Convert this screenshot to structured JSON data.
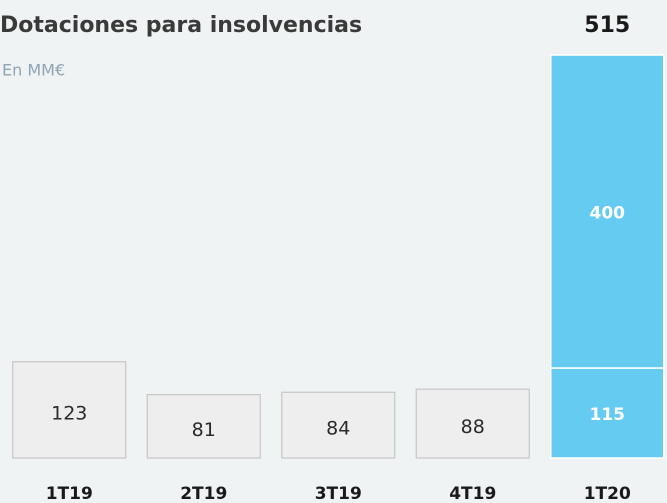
{
  "chart_data": {
    "type": "stacked_bar",
    "title": "Dotaciones para insolvencias",
    "subtitle": "En MM€",
    "categories": [
      "1T19",
      "2T19",
      "3T19",
      "4T19",
      "1T20"
    ],
    "series": [
      {
        "values": [
          123,
          81,
          84,
          88,
          115
        ],
        "colors": [
          "#eeeeee",
          "#eeeeee",
          "#eeeeee",
          "#eeeeee",
          "#66cbf0"
        ]
      },
      {
        "values": [
          null,
          null,
          null,
          null,
          400
        ],
        "colors": [
          null,
          null,
          null,
          null,
          "#66cbf0"
        ]
      }
    ],
    "totals": [
      null,
      null,
      null,
      null,
      515
    ],
    "ylim": [
      0,
      515
    ]
  }
}
